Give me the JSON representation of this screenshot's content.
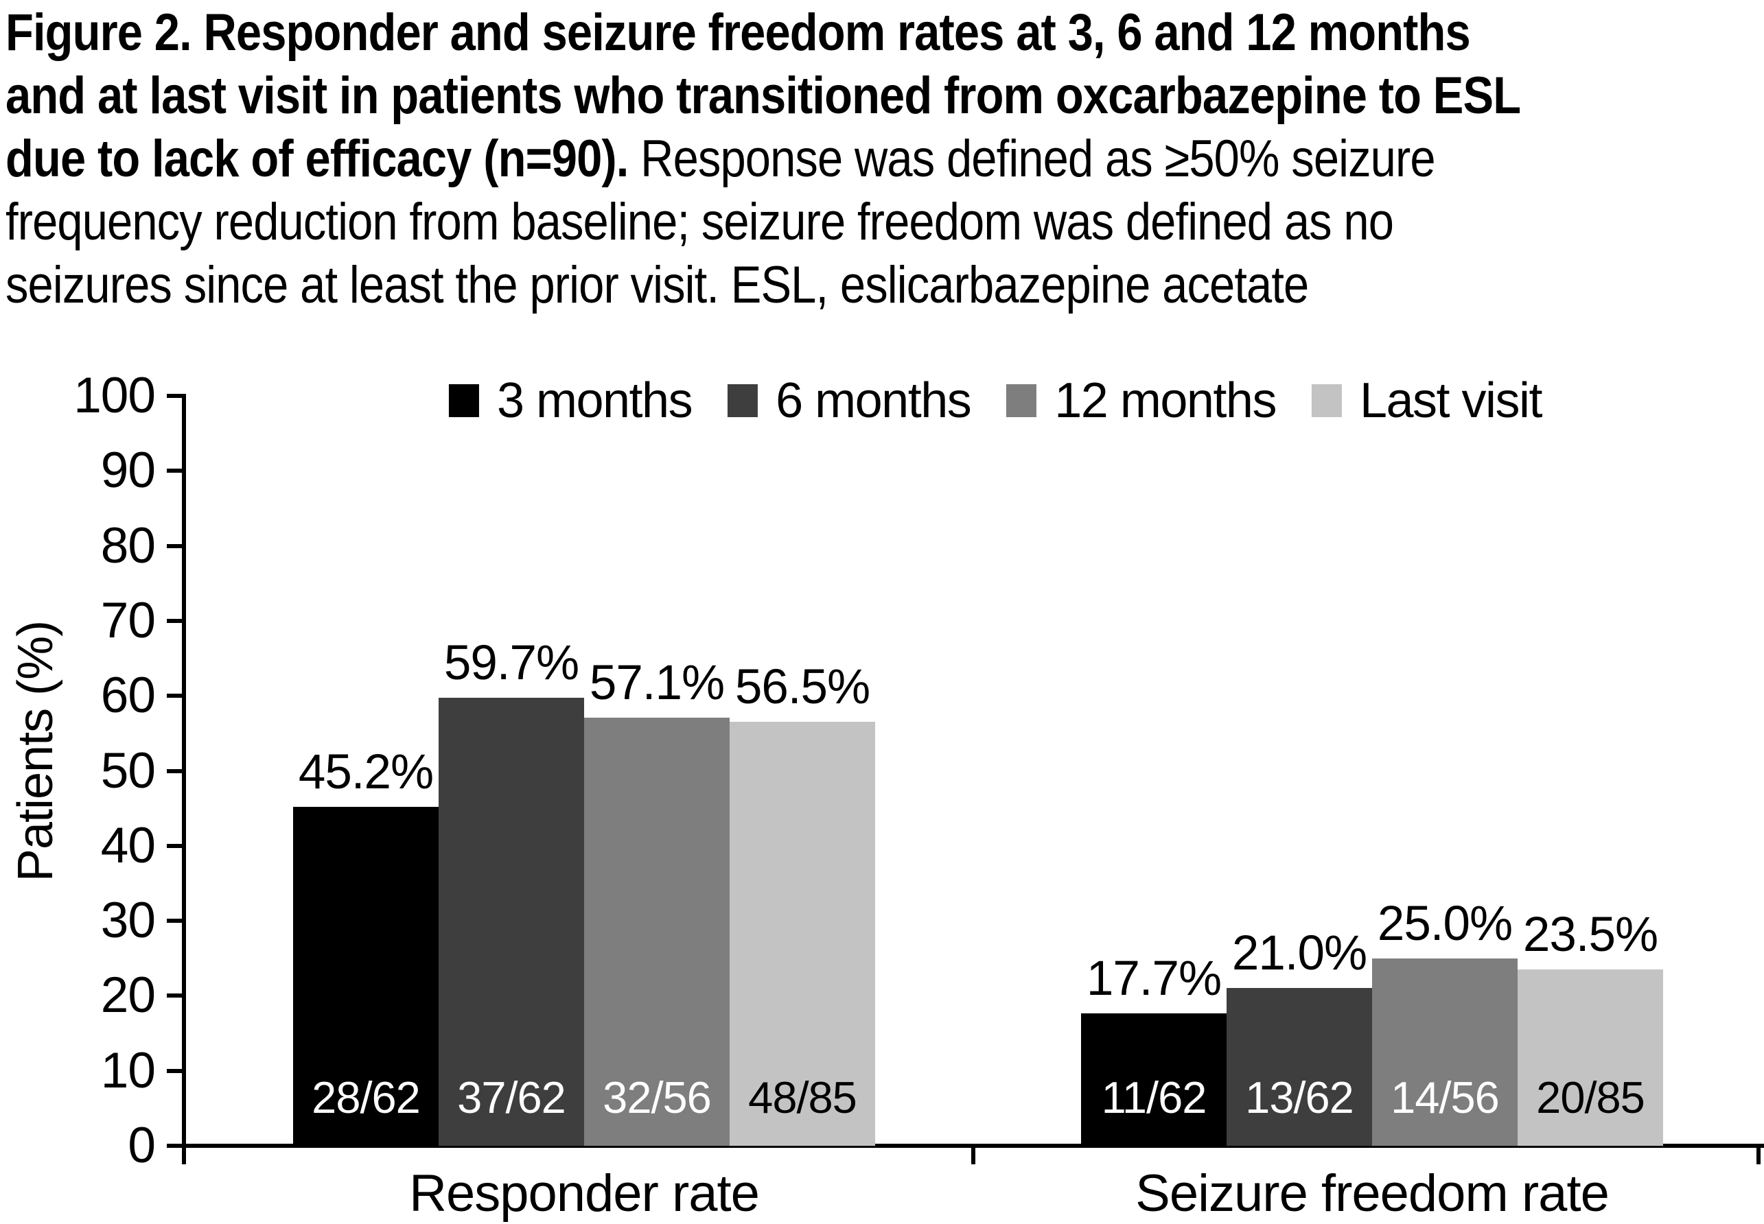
{
  "figure_caption": {
    "lines": [
      {
        "bold": "Figure 2. Responder and seizure freedom rates at 3, 6 and 12 months",
        "regular": ""
      },
      {
        "bold": "and at last visit in patients who transitioned from oxcarbazepine to ESL",
        "regular": ""
      },
      {
        "bold": "due to lack of efficacy (n=90).",
        "regular": " Response was defined as ≥50% seizure"
      },
      {
        "bold": "",
        "regular": "frequency reduction from baseline; seizure freedom was defined as no"
      },
      {
        "bold": "",
        "regular": "seizures since at least the prior visit. ESL, eslicarbazepine acetate"
      }
    ]
  },
  "chart_data": {
    "type": "bar",
    "title": "",
    "xlabel": "",
    "ylabel": "Patients (%)",
    "ylim": [
      0,
      100
    ],
    "yticks": [
      0,
      10,
      20,
      30,
      40,
      50,
      60,
      70,
      80,
      90,
      100
    ],
    "grid": false,
    "legend_position": "top",
    "categories": [
      "Responder rate",
      "Seizure freedom rate"
    ],
    "series": [
      {
        "name": "3 months",
        "color": "#000000",
        "values": [
          45.2,
          17.7
        ],
        "value_labels": [
          "45.2%",
          "17.7%"
        ],
        "bar_labels": [
          "28/62",
          "11/62"
        ],
        "bar_label_color": "#ffffff"
      },
      {
        "name": "6 months",
        "color": "#3e3e3e",
        "values": [
          59.7,
          21.0
        ],
        "value_labels": [
          "59.7%",
          "21.0%"
        ],
        "bar_labels": [
          "37/62",
          "13/62"
        ],
        "bar_label_color": "#ffffff"
      },
      {
        "name": "12 months",
        "color": "#7e7e7e",
        "values": [
          57.1,
          25.0
        ],
        "value_labels": [
          "57.1%",
          "25.0%"
        ],
        "bar_labels": [
          "32/56",
          "14/56"
        ],
        "bar_label_color": "#ffffff"
      },
      {
        "name": "Last visit",
        "color": "#c3c3c3",
        "values": [
          56.5,
          23.5
        ],
        "value_labels": [
          "56.5%",
          "23.5%"
        ],
        "bar_labels": [
          "48/85",
          "20/85"
        ],
        "bar_label_color": "#000000"
      }
    ]
  }
}
